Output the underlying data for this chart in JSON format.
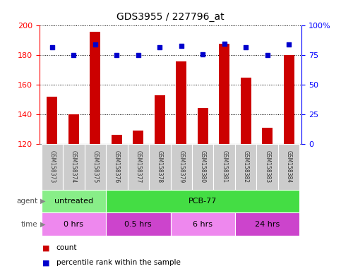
{
  "title": "GDS3955 / 227796_at",
  "samples": [
    "GSM158373",
    "GSM158374",
    "GSM158375",
    "GSM158376",
    "GSM158377",
    "GSM158378",
    "GSM158379",
    "GSM158380",
    "GSM158381",
    "GSM158382",
    "GSM158383",
    "GSM158384"
  ],
  "bar_values": [
    152,
    140,
    196,
    126,
    129,
    153,
    176,
    144,
    188,
    165,
    131,
    180
  ],
  "percentile_values": [
    82,
    75,
    84,
    75,
    75,
    82,
    83,
    76,
    85,
    82,
    75,
    84
  ],
  "bar_color": "#cc0000",
  "dot_color": "#0000cc",
  "ylim_left": [
    120,
    200
  ],
  "ylim_right": [
    0,
    100
  ],
  "yticks_left": [
    120,
    140,
    160,
    180,
    200
  ],
  "yticks_right": [
    0,
    25,
    50,
    75,
    100
  ],
  "grid_values": [
    140,
    160,
    180,
    200
  ],
  "agent_groups": [
    {
      "label": "untreated",
      "start": 0,
      "end": 3,
      "color": "#88ee88"
    },
    {
      "label": "PCB-77",
      "start": 3,
      "end": 12,
      "color": "#44dd44"
    }
  ],
  "time_groups": [
    {
      "label": "0 hrs",
      "start": 0,
      "end": 3,
      "color": "#ee88ee"
    },
    {
      "label": "0.5 hrs",
      "start": 3,
      "end": 6,
      "color": "#cc44cc"
    },
    {
      "label": "6 hrs",
      "start": 6,
      "end": 9,
      "color": "#ee88ee"
    },
    {
      "label": "24 hrs",
      "start": 9,
      "end": 12,
      "color": "#cc44cc"
    }
  ],
  "legend_items": [
    {
      "label": "count",
      "color": "#cc0000"
    },
    {
      "label": "percentile rank within the sample",
      "color": "#0000cc"
    }
  ],
  "bg_color": "#ffffff",
  "bar_width": 0.5,
  "sample_bg_color": "#cccccc"
}
